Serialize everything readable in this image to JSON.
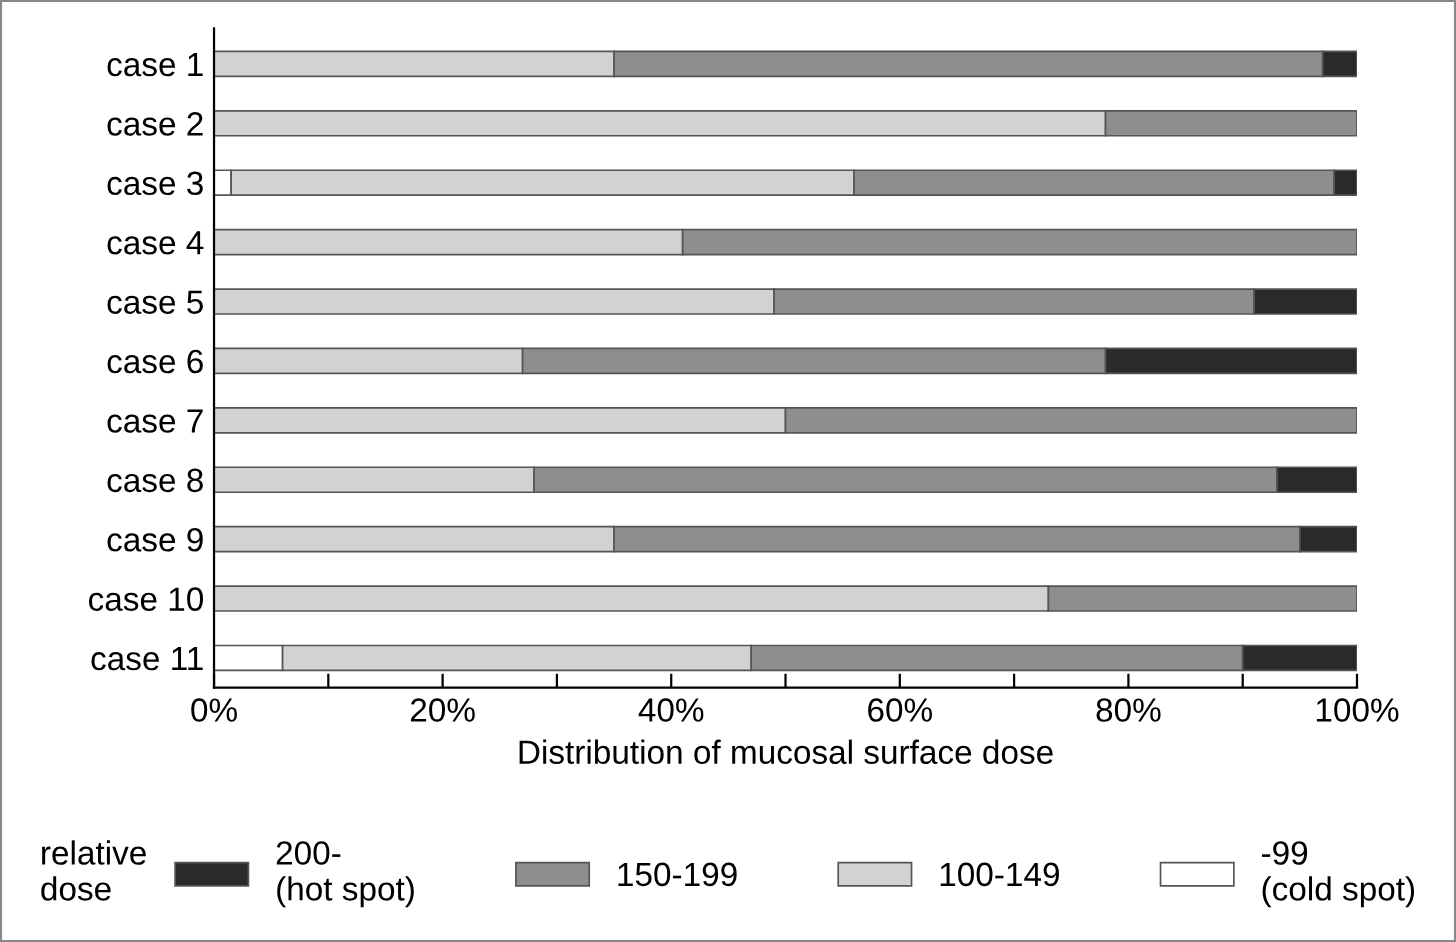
{
  "chart_data": {
    "type": "bar",
    "orientation": "horizontal",
    "stacked": true,
    "categories": [
      "case 1",
      "case 2",
      "case 3",
      "case 4",
      "case 5",
      "case 6",
      "case 7",
      "case 8",
      "case 9",
      "case 10",
      "case 11"
    ],
    "series": [
      {
        "name": "-99\n(cold spot)",
        "color": "#ffffff",
        "values": [
          null,
          null,
          1.5,
          null,
          null,
          null,
          null,
          null,
          null,
          null,
          6
        ]
      },
      {
        "name": "100-149",
        "color": "#d2d2d2",
        "values": [
          35,
          78,
          54.5,
          41,
          49,
          27,
          50,
          28,
          35,
          73,
          41
        ]
      },
      {
        "name": "150-199",
        "color": "#8e8e8e",
        "values": [
          62,
          22,
          42,
          59,
          42,
          51,
          50,
          65,
          60,
          27,
          43
        ]
      },
      {
        "name": "200-\n(hot spot)",
        "color": "#2a2a2a",
        "values": [
          3,
          null,
          2,
          null,
          9,
          22,
          null,
          7,
          5,
          null,
          10
        ]
      }
    ],
    "xlabel": "Distribution of mucosal surface dose",
    "legend_title": "relative\ndose",
    "legend": "bottom",
    "grid": false,
    "xlim": [
      0,
      100
    ],
    "xticks": [
      {
        "value": 0,
        "label": "0%"
      },
      {
        "value": 10,
        "label": null
      },
      {
        "value": 20,
        "label": "20%"
      },
      {
        "value": 30,
        "label": null
      },
      {
        "value": 40,
        "label": "40%"
      },
      {
        "value": 50,
        "label": null
      },
      {
        "value": 60,
        "label": "60%"
      },
      {
        "value": 70,
        "label": null
      },
      {
        "value": 80,
        "label": "80%"
      },
      {
        "value": 90,
        "label": null
      },
      {
        "value": 100,
        "label": "100%"
      }
    ]
  }
}
